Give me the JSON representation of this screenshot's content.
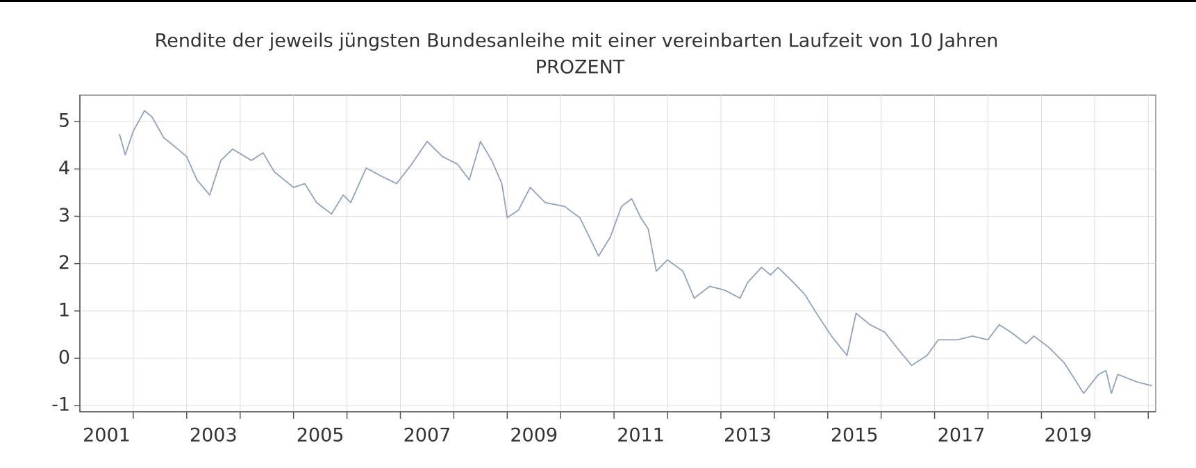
{
  "chart_data": {
    "type": "line",
    "title": "Rendite der jeweils jüngsten Bundesanleihe mit einer vereinbarten Laufzeit von 10 Jahren",
    "subtitle": "PROZENT",
    "x": [
      2001.74,
      2001.85,
      2002.0,
      2002.21,
      2002.35,
      2002.57,
      2002.8,
      2003.0,
      2003.19,
      2003.43,
      2003.64,
      2003.86,
      2004.21,
      2004.43,
      2004.64,
      2005.0,
      2005.21,
      2005.43,
      2005.71,
      2005.93,
      2006.07,
      2006.36,
      2006.64,
      2006.93,
      2007.21,
      2007.5,
      2007.79,
      2008.07,
      2008.29,
      2008.5,
      2008.71,
      2008.9,
      2009.0,
      2009.21,
      2009.43,
      2009.71,
      2010.07,
      2010.36,
      2010.5,
      2010.71,
      2010.93,
      2011.14,
      2011.33,
      2011.5,
      2011.64,
      2011.79,
      2012.0,
      2012.29,
      2012.5,
      2012.79,
      2013.07,
      2013.36,
      2013.5,
      2013.76,
      2013.93,
      2014.07,
      2014.36,
      2014.57,
      2014.79,
      2015.07,
      2015.36,
      2015.53,
      2015.79,
      2016.07,
      2016.29,
      2016.57,
      2016.86,
      2017.07,
      2017.43,
      2017.71,
      2018.0,
      2018.21,
      2018.43,
      2018.71,
      2018.86,
      2019.14,
      2019.43,
      2019.79,
      2020.07,
      2020.21,
      2020.31,
      2020.43,
      2020.79,
      2021.07
    ],
    "series": [
      {
        "name": "Rendite",
        "color": "#8fa3bf",
        "values": [
          4.74,
          4.3,
          4.8,
          5.23,
          5.1,
          4.66,
          4.45,
          4.26,
          3.77,
          3.45,
          4.18,
          4.42,
          4.18,
          4.34,
          3.94,
          3.61,
          3.69,
          3.29,
          3.05,
          3.45,
          3.29,
          4.02,
          3.85,
          3.69,
          4.1,
          4.58,
          4.26,
          4.1,
          3.77,
          4.58,
          4.18,
          3.69,
          2.97,
          3.13,
          3.61,
          3.29,
          3.21,
          2.97,
          2.65,
          2.16,
          2.56,
          3.21,
          3.37,
          2.97,
          2.73,
          1.84,
          2.08,
          1.84,
          1.27,
          1.52,
          1.44,
          1.27,
          1.6,
          1.92,
          1.76,
          1.92,
          1.6,
          1.35,
          0.95,
          0.47,
          0.06,
          0.95,
          0.71,
          0.55,
          0.23,
          -0.15,
          0.06,
          0.39,
          0.39,
          0.47,
          0.39,
          0.71,
          0.55,
          0.31,
          0.47,
          0.23,
          -0.1,
          -0.74,
          -0.34,
          -0.26,
          -0.74,
          -0.34,
          -0.5,
          -0.58
        ]
      }
    ],
    "xlim": [
      2001,
      2021.14
    ],
    "xticks": [
      {
        "value": 2001.5,
        "label": "2001"
      },
      {
        "value": 2003.5,
        "label": "2003"
      },
      {
        "value": 2005.5,
        "label": "2005"
      },
      {
        "value": 2007.5,
        "label": "2007"
      },
      {
        "value": 2009.5,
        "label": "2009"
      },
      {
        "value": 2011.5,
        "label": "2011"
      },
      {
        "value": 2013.5,
        "label": "2013"
      },
      {
        "value": 2015.5,
        "label": "2015"
      },
      {
        "value": 2017.5,
        "label": "2017"
      },
      {
        "value": 2019.5,
        "label": "2019"
      }
    ],
    "xgrid": [
      2002,
      2003,
      2004,
      2005,
      2006,
      2007,
      2008,
      2009,
      2010,
      2011,
      2012,
      2013,
      2014,
      2015,
      2016,
      2017,
      2018,
      2019,
      2020,
      2021
    ],
    "ylim": [
      -1.13,
      5.56
    ],
    "yticks": [
      -1,
      0,
      1,
      2,
      3,
      4,
      5
    ],
    "grid": true
  }
}
